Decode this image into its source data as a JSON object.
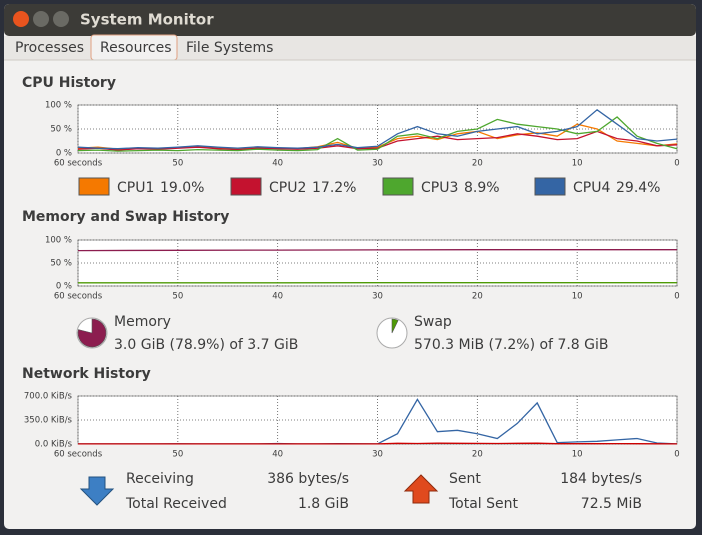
{
  "window": {
    "title": "System Monitor"
  },
  "tabs": [
    "Processes",
    "Resources",
    "File Systems"
  ],
  "sections": {
    "cpu": "CPU History",
    "memory": "Memory and Swap History",
    "network": "Network History"
  },
  "chart_data": [
    {
      "type": "line",
      "x": [
        60,
        58,
        56,
        54,
        52,
        50,
        48,
        46,
        44,
        42,
        40,
        38,
        36,
        34,
        32,
        30,
        28,
        26,
        24,
        22,
        20,
        18,
        16,
        14,
        12,
        10,
        8,
        6,
        4,
        2,
        0
      ],
      "xlim": [
        60,
        0
      ],
      "xticks": [
        {
          "value": 60,
          "label": "60 seconds"
        },
        50,
        40,
        30,
        20,
        10,
        0
      ],
      "ylim": [
        0,
        100
      ],
      "yticks": [
        {
          "value": 0,
          "label": "0 %"
        },
        {
          "value": 50,
          "label": "50 %"
        },
        {
          "value": 100,
          "label": "100 %"
        }
      ],
      "grid": true,
      "series": [
        {
          "name": "CPU1",
          "current": "19.0%",
          "color": "#f57900",
          "values": [
            10,
            12,
            8,
            10,
            9,
            11,
            14,
            10,
            8,
            12,
            10,
            9,
            13,
            22,
            10,
            12,
            30,
            35,
            28,
            40,
            45,
            30,
            38,
            42,
            35,
            60,
            50,
            25,
            20,
            15,
            19
          ]
        },
        {
          "name": "CPU2",
          "current": "17.2%",
          "color": "#c4122f",
          "values": [
            8,
            10,
            6,
            9,
            8,
            10,
            12,
            9,
            7,
            10,
            9,
            8,
            10,
            15,
            9,
            10,
            25,
            30,
            35,
            28,
            30,
            32,
            40,
            35,
            28,
            30,
            45,
            30,
            25,
            15,
            17
          ]
        },
        {
          "name": "CPU3",
          "current": "8.9%",
          "color": "#4ea72e",
          "values": [
            5,
            6,
            4,
            5,
            6,
            5,
            7,
            6,
            5,
            8,
            6,
            5,
            7,
            30,
            6,
            8,
            35,
            40,
            30,
            45,
            50,
            70,
            60,
            55,
            50,
            40,
            45,
            75,
            35,
            20,
            9
          ]
        },
        {
          "name": "CPU4",
          "current": "29.4%",
          "color": "#3465a4",
          "values": [
            12,
            10,
            9,
            11,
            10,
            12,
            15,
            12,
            10,
            13,
            11,
            10,
            12,
            18,
            11,
            14,
            40,
            55,
            40,
            35,
            45,
            50,
            55,
            40,
            45,
            55,
            90,
            60,
            30,
            25,
            29
          ]
        }
      ]
    },
    {
      "type": "line",
      "x": [
        60,
        50,
        40,
        30,
        20,
        10,
        0
      ],
      "xlim": [
        60,
        0
      ],
      "xticks": [
        {
          "value": 60,
          "label": "60 seconds"
        },
        50,
        40,
        30,
        20,
        10,
        0
      ],
      "ylim": [
        0,
        100
      ],
      "yticks": [
        {
          "value": 0,
          "label": "0 %"
        },
        {
          "value": 50,
          "label": "50 %"
        },
        {
          "value": 100,
          "label": "100 %"
        }
      ],
      "grid": true,
      "series": [
        {
          "color": "#8c1d4f",
          "values": [
            77,
            77.5,
            78,
            78.5,
            79,
            79,
            79
          ]
        },
        {
          "color": "#4e9a06",
          "values": [
            7,
            7,
            7,
            7.2,
            7.2,
            7.2,
            7.2
          ]
        }
      ]
    },
    {
      "type": "line",
      "x": [
        60,
        58,
        56,
        54,
        52,
        50,
        48,
        46,
        44,
        42,
        40,
        38,
        36,
        34,
        32,
        30,
        28,
        26,
        24,
        22,
        20,
        18,
        16,
        14,
        12,
        10,
        8,
        6,
        4,
        2,
        0
      ],
      "xlim": [
        60,
        0
      ],
      "xticks": [
        {
          "value": 60,
          "label": "60 seconds"
        },
        50,
        40,
        30,
        20,
        10,
        0
      ],
      "ylim": [
        0,
        700
      ],
      "yticks": [
        {
          "value": 0,
          "label": "0.0 KiB/s"
        },
        {
          "value": 350,
          "label": "350.0 KiB/s"
        },
        {
          "value": 700,
          "label": "700.0 KiB/s"
        }
      ],
      "grid": true,
      "series": [
        {
          "color": "#3465a4",
          "values": [
            2,
            1,
            2,
            1,
            1,
            3,
            2,
            1,
            2,
            1,
            8,
            2,
            1,
            5,
            3,
            2,
            150,
            650,
            180,
            200,
            150,
            80,
            300,
            600,
            20,
            30,
            40,
            60,
            80,
            15,
            2
          ]
        },
        {
          "color": "#cc0000",
          "values": [
            1,
            1,
            1,
            1,
            1,
            1,
            1,
            1,
            1,
            1,
            2,
            1,
            1,
            2,
            1,
            1,
            10,
            8,
            12,
            10,
            9,
            8,
            10,
            12,
            5,
            4,
            5,
            6,
            5,
            3,
            1
          ]
        }
      ]
    }
  ],
  "memory": {
    "label": "Memory",
    "detail": "3.0 GiB (78.9%) of 3.7 GiB",
    "percent": 78.9,
    "color": "#8c1d4f"
  },
  "swap": {
    "label": "Swap",
    "detail": "570.3 MiB (7.2%) of 7.8 GiB",
    "percent": 7.2,
    "color": "#4e9a06"
  },
  "network": {
    "receiving": {
      "label": "Receiving",
      "value": "386 bytes/s"
    },
    "total_received": {
      "label": "Total Received",
      "value": "1.8 GiB"
    },
    "sent": {
      "label": "Sent",
      "value": "184 bytes/s"
    },
    "total_sent": {
      "label": "Total Sent",
      "value": "72.5 MiB"
    }
  }
}
